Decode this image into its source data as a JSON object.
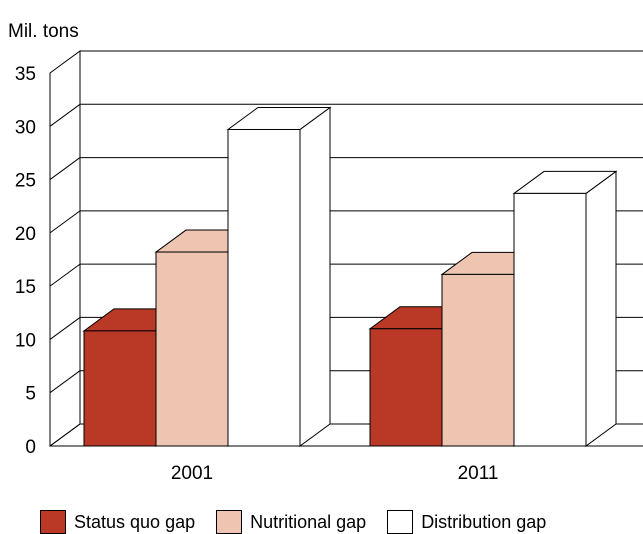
{
  "chart_data": {
    "type": "bar",
    "ylabel": "Mil. tons",
    "ylim": [
      0,
      35
    ],
    "yticks": [
      0,
      5,
      10,
      15,
      20,
      25,
      30,
      35
    ],
    "categories": [
      "2001",
      "2011"
    ],
    "series": [
      {
        "name": "Status quo gap",
        "values": [
          10.8,
          11.0
        ],
        "color": "#b93826"
      },
      {
        "name": "Nutritional gap",
        "values": [
          18.2,
          16.1
        ],
        "color": "#edc5b0"
      },
      {
        "name": "Distribution gap",
        "values": [
          29.7,
          23.7
        ],
        "color": "#ffffff"
      }
    ],
    "grid": true,
    "legend_position": "bottom",
    "style": "3d"
  }
}
